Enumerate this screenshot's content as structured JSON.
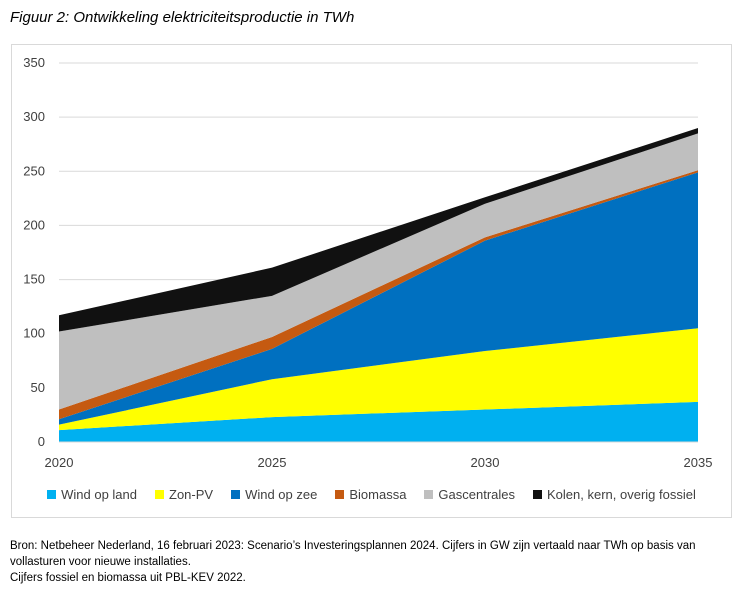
{
  "figure": {
    "title": "Figuur 2: Ontwikkeling elektriciteitsproductie in TWh"
  },
  "chart_data": {
    "type": "area",
    "stacked": true,
    "x": [
      2020,
      2025,
      2030,
      2035
    ],
    "xlim": [
      2020,
      2035
    ],
    "ylim": [
      0,
      350
    ],
    "yticks": [
      0,
      50,
      100,
      150,
      200,
      250,
      300,
      350
    ],
    "xticks": [
      2020,
      2025,
      2030,
      2035
    ],
    "grid": true,
    "legend_position": "bottom",
    "series": [
      {
        "name": "Wind op land",
        "color": "#00B0F0",
        "values": [
          11,
          23,
          30,
          37
        ]
      },
      {
        "name": "Zon-PV",
        "color": "#FFFF00",
        "values": [
          5,
          35,
          54,
          68
        ]
      },
      {
        "name": "Wind op zee",
        "color": "#0070C0",
        "values": [
          5,
          28,
          102,
          144
        ]
      },
      {
        "name": "Biomassa",
        "color": "#C55A11",
        "values": [
          9,
          11,
          3,
          2
        ]
      },
      {
        "name": "Gascentrales",
        "color": "#BFBFBF",
        "values": [
          72,
          38,
          31,
          34
        ]
      },
      {
        "name": "Kolen, kern, overig fossiel",
        "color": "#111111",
        "values": [
          15,
          26,
          6,
          5
        ]
      }
    ]
  },
  "source": {
    "line1": "Bron: Netbeheer Nederland, 16 februari 2023: Scenario’s Investeringsplannen 2024. Cijfers in GW zijn vertaald naar TWh op basis van vollasturen voor nieuwe installaties.",
    "line2": "Cijfers fossiel en biomassa uit PBL-KEV 2022."
  }
}
